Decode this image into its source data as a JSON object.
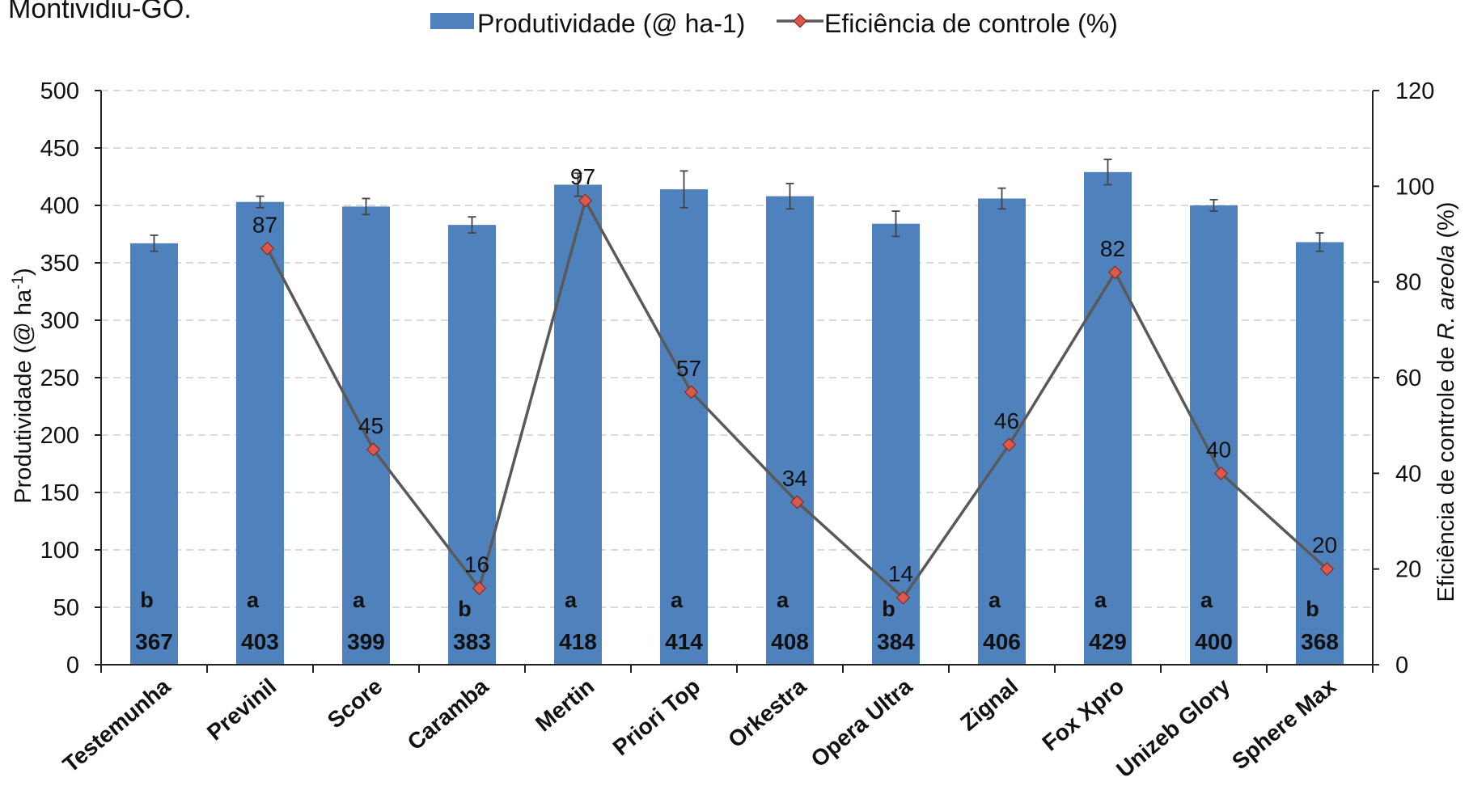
{
  "header": {
    "partial_text": "Montividiu-GO."
  },
  "chart_data": {
    "type": "bar",
    "categories": [
      "Testemunha",
      "Previnil",
      "Score",
      "Caramba",
      "Mertin",
      "Priori Top",
      "Orkestra",
      "Opera Ultra",
      "Zignal",
      "Fox Xpro",
      "Unizeb Glory",
      "Sphere Max"
    ],
    "series": [
      {
        "name": "Produtividade (@ ha-1)",
        "type": "bar",
        "axis": "left",
        "color": "#4f81bd",
        "values": [
          367,
          403,
          399,
          383,
          418,
          414,
          408,
          384,
          406,
          429,
          400,
          368
        ],
        "error_bars": [
          7,
          5,
          7,
          7,
          10,
          16,
          11,
          11,
          9,
          11,
          5,
          8
        ],
        "value_labels": [
          "367",
          "403",
          "399",
          "383",
          "418",
          "414",
          "408",
          "384",
          "406",
          "429",
          "400",
          "368"
        ],
        "letters": [
          "b",
          "a",
          "a",
          "b",
          "a",
          "a",
          "a",
          "b",
          "a",
          "a",
          "a",
          "b"
        ]
      },
      {
        "name": "Eficiência de controle (%)",
        "type": "line",
        "axis": "right",
        "color": "#595959",
        "marker_color": "#d9594c",
        "values": [
          null,
          87,
          45,
          16,
          97,
          57,
          34,
          14,
          46,
          82,
          40,
          20
        ],
        "value_labels": [
          "",
          "87",
          "45",
          "16",
          "97",
          "57",
          "34",
          "14",
          "46",
          "82",
          "40",
          "20"
        ]
      }
    ],
    "y_left": {
      "label_main": "Produtividade (@ ha",
      "label_sup": "-1",
      "label_end": ")",
      "min": 0,
      "max": 500,
      "step": 50,
      "ticks": [
        "0",
        "50",
        "100",
        "150",
        "200",
        "250",
        "300",
        "350",
        "400",
        "450",
        "500"
      ]
    },
    "y_right": {
      "label_main": "Eficiência de controle de ",
      "label_italic": "R. areola",
      "label_end": " (%)",
      "min": 0,
      "max": 120,
      "step": 20,
      "ticks": [
        "0",
        "20",
        "40",
        "60",
        "80",
        "100",
        "120"
      ]
    },
    "grid": true,
    "legend": "top-center"
  }
}
